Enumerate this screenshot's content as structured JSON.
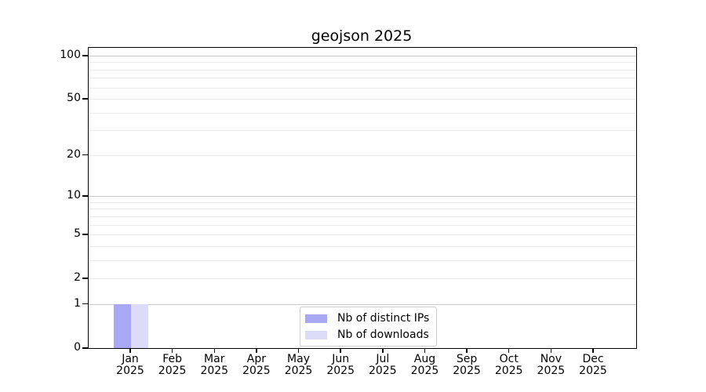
{
  "chart_data": {
    "type": "bar",
    "title": "geojson 2025",
    "categories": [
      "Jan",
      "Feb",
      "Mar",
      "Apr",
      "May",
      "Jun",
      "Jul",
      "Aug",
      "Sep",
      "Oct",
      "Nov",
      "Dec"
    ],
    "category_year": "2025",
    "series": [
      {
        "name": "Nb of distinct IPs",
        "color": "#a8a8f5",
        "values": [
          1,
          0,
          0,
          0,
          0,
          0,
          0,
          0,
          0,
          0,
          0,
          0
        ]
      },
      {
        "name": "Nb of downloads",
        "color": "#dcdcf8",
        "values": [
          1,
          0,
          0,
          0,
          0,
          0,
          0,
          0,
          0,
          0,
          0,
          0
        ]
      }
    ],
    "y_axis": {
      "scale": "log1p",
      "ticks": [
        0,
        1,
        2,
        5,
        10,
        20,
        50,
        100
      ],
      "major_gridlines": [
        1,
        10,
        100
      ],
      "minor_gridlines": [
        2,
        3,
        4,
        5,
        6,
        7,
        8,
        9,
        20,
        30,
        40,
        50,
        60,
        70,
        80,
        90
      ],
      "range": [
        0,
        113
      ]
    },
    "grid": true,
    "legend_position": "lower center",
    "colors": {
      "major_grid": "#c7c7c7",
      "minor_grid": "#eaeaea",
      "axis": "#000000",
      "background": "#ffffff"
    }
  }
}
